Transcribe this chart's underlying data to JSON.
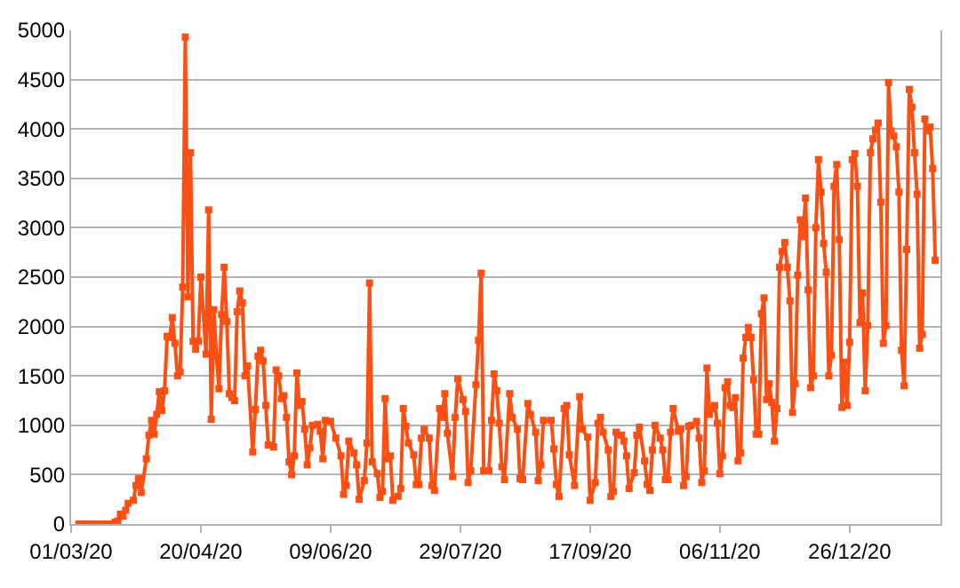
{
  "chart_data": {
    "type": "line",
    "marker": "square",
    "line_style": "solid",
    "grid": "y",
    "xlim": [
      "2020-03-01",
      "2021-01-30"
    ],
    "xticks": [
      {
        "value": "2020-03-01",
        "label": "01/03/20"
      },
      {
        "value": "2020-04-20",
        "label": "20/04/20"
      },
      {
        "value": "2020-06-09",
        "label": "09/06/20"
      },
      {
        "value": "2020-07-29",
        "label": "29/07/20"
      },
      {
        "value": "2020-09-17",
        "label": "17/09/20"
      },
      {
        "value": "2020-11-06",
        "label": "06/11/20"
      },
      {
        "value": "2020-12-26",
        "label": "26/12/20"
      }
    ],
    "ylim": [
      0,
      5000
    ],
    "yticks": [
      0,
      500,
      1000,
      1500,
      2000,
      2500,
      3000,
      3500,
      4000,
      4500,
      5000
    ],
    "series": [
      {
        "color": "#fb4f14",
        "x": [
          "2020-03-04",
          "2020-03-05",
          "2020-03-06",
          "2020-03-07",
          "2020-03-08",
          "2020-03-09",
          "2020-03-10",
          "2020-03-11",
          "2020-03-12",
          "2020-03-13",
          "2020-03-14",
          "2020-03-15",
          "2020-03-16",
          "2020-03-17",
          "2020-03-18",
          "2020-03-19",
          "2020-03-20",
          "2020-03-21",
          "2020-03-22",
          "2020-03-23",
          "2020-03-25",
          "2020-03-26",
          "2020-03-27",
          "2020-03-28",
          "2020-03-30",
          "2020-03-31",
          "2020-04-01",
          "2020-04-02",
          "2020-04-03",
          "2020-04-04",
          "2020-04-05",
          "2020-04-06",
          "2020-04-07",
          "2020-04-08",
          "2020-04-09",
          "2020-04-10",
          "2020-04-11",
          "2020-04-12",
          "2020-04-13",
          "2020-04-14",
          "2020-04-15",
          "2020-04-16",
          "2020-04-17",
          "2020-04-18",
          "2020-04-19",
          "2020-04-20",
          "2020-04-22",
          "2020-04-23",
          "2020-04-24",
          "2020-04-25",
          "2020-04-26",
          "2020-04-27",
          "2020-04-28",
          "2020-04-29",
          "2020-04-30",
          "2020-05-01",
          "2020-05-02",
          "2020-05-03",
          "2020-05-04",
          "2020-05-05",
          "2020-05-06",
          "2020-05-07",
          "2020-05-08",
          "2020-05-10",
          "2020-05-11",
          "2020-05-12",
          "2020-05-13",
          "2020-05-14",
          "2020-05-15",
          "2020-05-16",
          "2020-05-18",
          "2020-05-19",
          "2020-05-20",
          "2020-05-21",
          "2020-05-22",
          "2020-05-23",
          "2020-05-24",
          "2020-05-25",
          "2020-05-26",
          "2020-05-27",
          "2020-05-28",
          "2020-05-29",
          "2020-05-30",
          "2020-05-31",
          "2020-06-01",
          "2020-06-02",
          "2020-06-04",
          "2020-06-05",
          "2020-06-06",
          "2020-06-07",
          "2020-06-09",
          "2020-06-11",
          "2020-06-13",
          "2020-06-14",
          "2020-06-15",
          "2020-06-16",
          "2020-06-18",
          "2020-06-19",
          "2020-06-20",
          "2020-06-22",
          "2020-06-23",
          "2020-06-24",
          "2020-06-25",
          "2020-06-27",
          "2020-06-28",
          "2020-06-29",
          "2020-06-30",
          "2020-07-01",
          "2020-07-02",
          "2020-07-03",
          "2020-07-05",
          "2020-07-06",
          "2020-07-07",
          "2020-07-08",
          "2020-07-09",
          "2020-07-11",
          "2020-07-12",
          "2020-07-13",
          "2020-07-14",
          "2020-07-15",
          "2020-07-17",
          "2020-07-18",
          "2020-07-19",
          "2020-07-21",
          "2020-07-22",
          "2020-07-23",
          "2020-07-24",
          "2020-07-26",
          "2020-07-27",
          "2020-07-28",
          "2020-07-30",
          "2020-07-31",
          "2020-08-01",
          "2020-08-02",
          "2020-08-04",
          "2020-08-05",
          "2020-08-06",
          "2020-08-07",
          "2020-08-09",
          "2020-08-10",
          "2020-08-11",
          "2020-08-12",
          "2020-08-13",
          "2020-08-14",
          "2020-08-15",
          "2020-08-17",
          "2020-08-18",
          "2020-08-20",
          "2020-08-21",
          "2020-08-22",
          "2020-08-24",
          "2020-08-25",
          "2020-08-27",
          "2020-08-28",
          "2020-08-29",
          "2020-08-30",
          "2020-09-02",
          "2020-09-03",
          "2020-09-04",
          "2020-09-05",
          "2020-09-07",
          "2020-09-08",
          "2020-09-09",
          "2020-09-11",
          "2020-09-13",
          "2020-09-14",
          "2020-09-16",
          "2020-09-17",
          "2020-09-19",
          "2020-09-20",
          "2020-09-21",
          "2020-09-22",
          "2020-09-24",
          "2020-09-25",
          "2020-09-26",
          "2020-09-27",
          "2020-09-29",
          "2020-09-30",
          "2020-10-01",
          "2020-10-02",
          "2020-10-04",
          "2020-10-05",
          "2020-10-06",
          "2020-10-08",
          "2020-10-09",
          "2020-10-10",
          "2020-10-11",
          "2020-10-12",
          "2020-10-14",
          "2020-10-15",
          "2020-10-16",
          "2020-10-17",
          "2020-10-18",
          "2020-10-19",
          "2020-10-21",
          "2020-10-22",
          "2020-10-23",
          "2020-10-24",
          "2020-10-25",
          "2020-10-26",
          "2020-10-28",
          "2020-10-29",
          "2020-10-30",
          "2020-10-31",
          "2020-11-01",
          "2020-11-02",
          "2020-11-03",
          "2020-11-04",
          "2020-11-05",
          "2020-11-06",
          "2020-11-07",
          "2020-11-08",
          "2020-11-09",
          "2020-11-10",
          "2020-11-11",
          "2020-11-12",
          "2020-11-13",
          "2020-11-14",
          "2020-11-15",
          "2020-11-16",
          "2020-11-17",
          "2020-11-18",
          "2020-11-19",
          "2020-11-20",
          "2020-11-21",
          "2020-11-22",
          "2020-11-23",
          "2020-11-24",
          "2020-11-25",
          "2020-11-26",
          "2020-11-27",
          "2020-11-28",
          "2020-11-29",
          "2020-11-30",
          "2020-12-01",
          "2020-12-02",
          "2020-12-03",
          "2020-12-04",
          "2020-12-05",
          "2020-12-06",
          "2020-12-07",
          "2020-12-08",
          "2020-12-09",
          "2020-12-10",
          "2020-12-11",
          "2020-12-12",
          "2020-12-13",
          "2020-12-14",
          "2020-12-15",
          "2020-12-16",
          "2020-12-17",
          "2020-12-18",
          "2020-12-19",
          "2020-12-20",
          "2020-12-21",
          "2020-12-22",
          "2020-12-23",
          "2020-12-24",
          "2020-12-25",
          "2020-12-26",
          "2020-12-27",
          "2020-12-28",
          "2020-12-29",
          "2020-12-30",
          "2020-12-31",
          "2021-01-01",
          "2021-01-02",
          "2021-01-03",
          "2021-01-04",
          "2021-01-05",
          "2021-01-06",
          "2021-01-07",
          "2021-01-08",
          "2021-01-09",
          "2021-01-10",
          "2021-01-11",
          "2021-01-12",
          "2021-01-13",
          "2021-01-14",
          "2021-01-15",
          "2021-01-16",
          "2021-01-17",
          "2021-01-18",
          "2021-01-19",
          "2021-01-20",
          "2021-01-21",
          "2021-01-22",
          "2021-01-23",
          "2021-01-24",
          "2021-01-25",
          "2021-01-26",
          "2021-01-27",
          "2021-01-28"
        ],
        "values": [
          0,
          0,
          0,
          0,
          0,
          0,
          0,
          0,
          0,
          0,
          0,
          0,
          0,
          0,
          20,
          30,
          100,
          80,
          140,
          210,
          240,
          390,
          460,
          320,
          660,
          900,
          1050,
          910,
          1110,
          1340,
          1150,
          1350,
          1900,
          1890,
          2090,
          1830,
          1500,
          1540,
          2400,
          4930,
          2300,
          3760,
          1850,
          1770,
          1850,
          2500,
          1720,
          3180,
          1060,
          2170,
          1700,
          1370,
          2120,
          2600,
          2050,
          1320,
          1280,
          1250,
          2150,
          2360,
          2240,
          1500,
          1600,
          730,
          1160,
          1700,
          1760,
          1650,
          1200,
          800,
          780,
          1560,
          1500,
          1270,
          1300,
          1080,
          630,
          500,
          690,
          1530,
          1200,
          1240,
          960,
          600,
          770,
          1000,
          1010,
          940,
          660,
          1050,
          1040,
          870,
          690,
          300,
          390,
          840,
          720,
          600,
          250,
          440,
          820,
          2440,
          630,
          510,
          270,
          330,
          1270,
          660,
          690,
          240,
          280,
          360,
          1170,
          990,
          820,
          700,
          400,
          400,
          870,
          960,
          870,
          390,
          340,
          1170,
          1080,
          1320,
          920,
          480,
          1080,
          1470,
          1260,
          1140,
          420,
          540,
          1410,
          1860,
          2540,
          540,
          540,
          1050,
          1520,
          1350,
          1020,
          580,
          450,
          1320,
          1080,
          960,
          460,
          450,
          1220,
          1110,
          930,
          440,
          600,
          1050,
          1050,
          760,
          400,
          280,
          1170,
          1200,
          700,
          390,
          1290,
          960,
          880,
          240,
          420,
          1020,
          1080,
          930,
          750,
          280,
          330,
          930,
          900,
          840,
          690,
          360,
          520,
          900,
          980,
          640,
          400,
          340,
          750,
          1000,
          870,
          750,
          450,
          450,
          930,
          1170,
          940,
          960,
          390,
          480,
          990,
          1000,
          1040,
          870,
          420,
          540,
          1580,
          1110,
          1170,
          1200,
          1020,
          510,
          690,
          1380,
          1440,
          1200,
          1180,
          1280,
          640,
          720,
          1680,
          1890,
          1990,
          1890,
          1460,
          910,
          910,
          2130,
          2290,
          1260,
          1420,
          1230,
          840,
          1170,
          2600,
          2760,
          2850,
          2600,
          2260,
          1130,
          1420,
          2520,
          3080,
          2910,
          3300,
          2370,
          1380,
          1500,
          3000,
          3690,
          3360,
          2840,
          2550,
          1500,
          1710,
          3420,
          3640,
          2880,
          1180,
          1640,
          1200,
          1840,
          3690,
          3750,
          3420,
          2040,
          2340,
          1350,
          2010,
          3760,
          3900,
          3990,
          4060,
          3260,
          1830,
          2010,
          4470,
          3980,
          3930,
          3820,
          3360,
          1760,
          1400,
          2780,
          4400,
          4220,
          3760,
          3340,
          1780,
          1920,
          4100,
          3980,
          4020,
          3600,
          2670
        ]
      }
    ]
  }
}
